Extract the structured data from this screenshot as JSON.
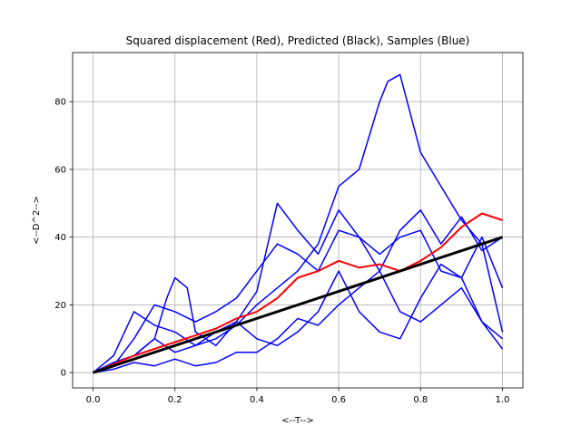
{
  "chart_data": {
    "type": "line",
    "title": "Squared displacement (Red), Predicted (Black), Samples (Blue)",
    "xlabel": "<--T-->",
    "ylabel": "<--D^2-->",
    "xlim": [
      -0.05,
      1.05
    ],
    "ylim": [
      -4.5,
      94.5
    ],
    "xticks": [
      0.0,
      0.2,
      0.4,
      0.6,
      0.8,
      1.0
    ],
    "xtick_labels": [
      "0.0",
      "0.2",
      "0.4",
      "0.6",
      "0.8",
      "1.0"
    ],
    "yticks": [
      0,
      20,
      40,
      60,
      80
    ],
    "ytick_labels": [
      "0",
      "20",
      "40",
      "60",
      "80"
    ],
    "grid": true,
    "legend": "none",
    "colors": {
      "samples": "#0000ff",
      "squared_displacement": "#ff0000",
      "predicted": "#000000"
    },
    "series": [
      {
        "color": "#0000ff",
        "x": [
          0.0,
          0.05,
          0.1,
          0.15,
          0.2,
          0.25,
          0.3,
          0.35,
          0.4,
          0.45,
          0.5,
          0.55,
          0.6,
          0.65,
          0.7,
          0.72,
          0.75,
          0.8,
          0.85,
          0.9,
          0.95,
          1.0
        ],
        "y": [
          0,
          3,
          5,
          10,
          6,
          8,
          10,
          14,
          20,
          25,
          30,
          38,
          55,
          60,
          80,
          86,
          88,
          65,
          55,
          45,
          38,
          12
        ]
      },
      {
        "color": "#0000ff",
        "x": [
          0.0,
          0.05,
          0.1,
          0.15,
          0.18,
          0.2,
          0.23,
          0.25,
          0.3,
          0.35,
          0.4,
          0.45,
          0.5,
          0.55,
          0.6,
          0.65,
          0.7,
          0.75,
          0.8,
          0.85,
          0.9,
          0.95,
          1.0
        ],
        "y": [
          0,
          3,
          5,
          10,
          22,
          28,
          25,
          12,
          8,
          15,
          24,
          50,
          42,
          35,
          48,
          40,
          30,
          42,
          48,
          38,
          46,
          36,
          40
        ]
      },
      {
        "color": "#0000ff",
        "x": [
          0.0,
          0.05,
          0.1,
          0.15,
          0.2,
          0.25,
          0.3,
          0.35,
          0.4,
          0.45,
          0.5,
          0.55,
          0.6,
          0.65,
          0.7,
          0.75,
          0.8,
          0.85,
          0.9,
          0.95,
          1.0
        ],
        "y": [
          0,
          5,
          18,
          14,
          12,
          8,
          12,
          15,
          10,
          8,
          12,
          18,
          30,
          18,
          12,
          10,
          22,
          32,
          28,
          40,
          25
        ]
      },
      {
        "color": "#0000ff",
        "x": [
          0.0,
          0.05,
          0.1,
          0.15,
          0.2,
          0.25,
          0.3,
          0.35,
          0.4,
          0.45,
          0.5,
          0.55,
          0.6,
          0.65,
          0.7,
          0.75,
          0.8,
          0.85,
          0.9,
          0.95,
          1.0
        ],
        "y": [
          0,
          1,
          3,
          2,
          4,
          2,
          3,
          6,
          6,
          10,
          16,
          14,
          20,
          25,
          30,
          18,
          15,
          20,
          25,
          15,
          7
        ]
      },
      {
        "color": "#0000ff",
        "x": [
          0.0,
          0.05,
          0.1,
          0.15,
          0.2,
          0.25,
          0.3,
          0.35,
          0.4,
          0.45,
          0.5,
          0.55,
          0.6,
          0.65,
          0.7,
          0.75,
          0.8,
          0.85,
          0.9,
          0.95,
          1.0
        ],
        "y": [
          0,
          2,
          10,
          20,
          18,
          15,
          18,
          22,
          30,
          38,
          35,
          30,
          42,
          40,
          35,
          40,
          42,
          30,
          28,
          15,
          10
        ]
      },
      {
        "color": "#ff0000",
        "x": [
          0.0,
          0.05,
          0.1,
          0.15,
          0.2,
          0.25,
          0.3,
          0.35,
          0.4,
          0.45,
          0.5,
          0.55,
          0.6,
          0.65,
          0.7,
          0.75,
          0.8,
          0.85,
          0.9,
          0.95,
          1.0
        ],
        "y": [
          0,
          2.5,
          5,
          7,
          9,
          11,
          13,
          16,
          18,
          22,
          28,
          30,
          33,
          31,
          32,
          30,
          33,
          37,
          43,
          47,
          45
        ]
      },
      {
        "color": "#000000",
        "x": [
          0.0,
          1.0
        ],
        "y": [
          0,
          40
        ]
      }
    ]
  }
}
